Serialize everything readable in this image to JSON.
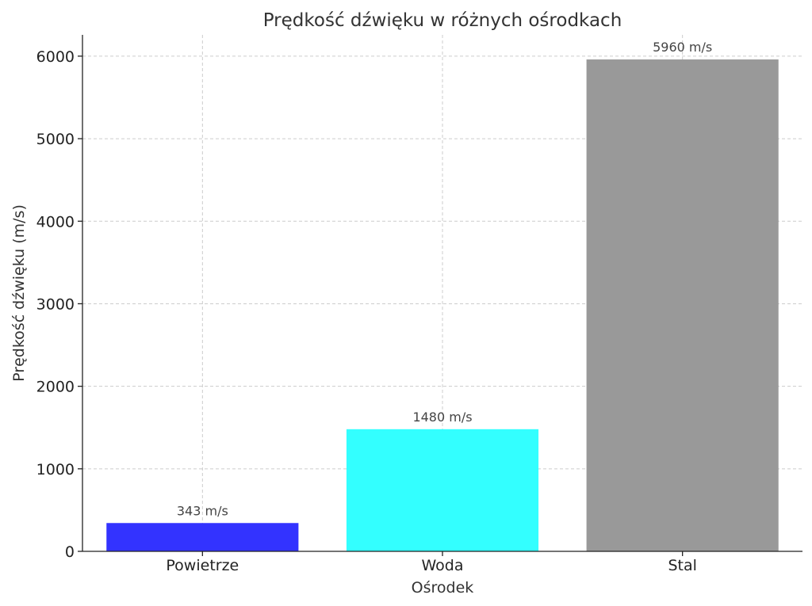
{
  "chart_data": {
    "type": "bar",
    "title": "Prędkość dźwięku w różnych ośrodkach",
    "xlabel": "Ośrodek",
    "ylabel": "Prędkość dźwięku (m/s)",
    "categories": [
      "Powietrze",
      "Woda",
      "Stal"
    ],
    "values": [
      343,
      1480,
      5960
    ],
    "data_labels": [
      "343 m/s",
      "1480 m/s",
      "5960 m/s"
    ],
    "colors": [
      "#3333ff",
      "#33ffff",
      "#999999"
    ],
    "ylim": [
      0,
      6258
    ],
    "yticks": [
      0,
      1000,
      2000,
      3000,
      4000,
      5000,
      6000
    ],
    "grid": true,
    "legend": "none"
  }
}
